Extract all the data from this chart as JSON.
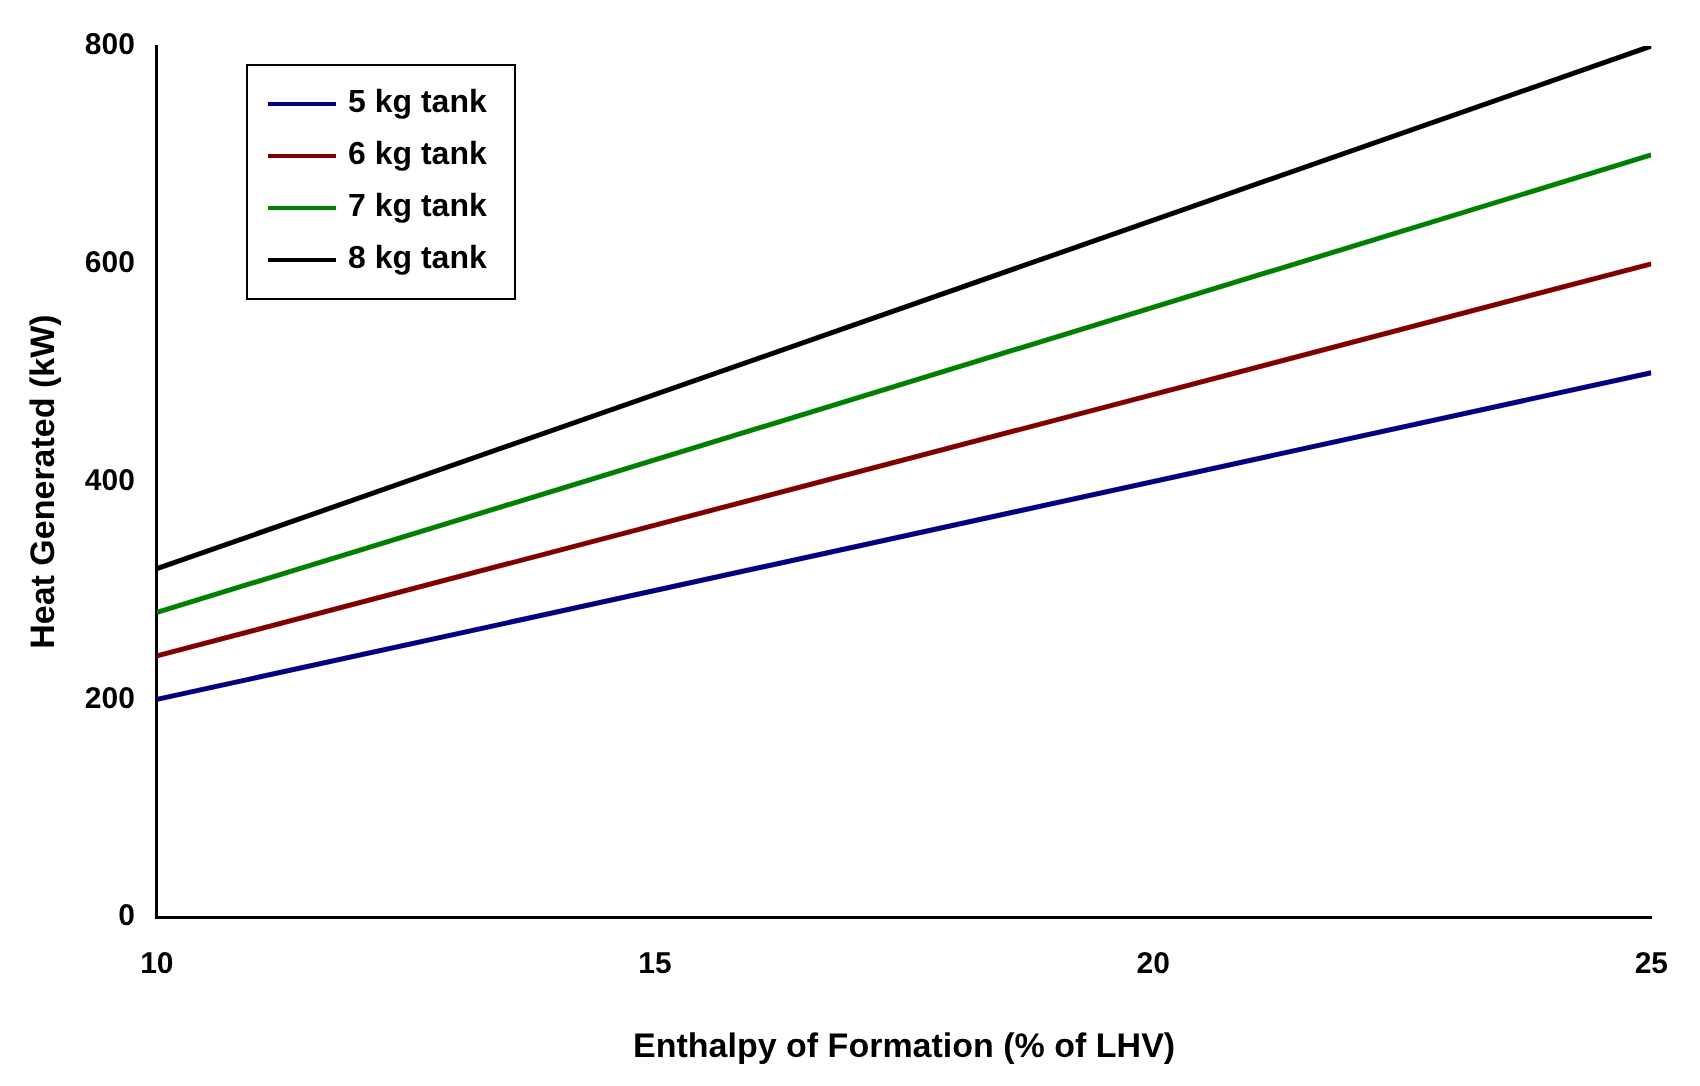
{
  "chart_data": {
    "type": "line",
    "xlabel": "Enthalpy of Formation (% of LHV)",
    "ylabel": "Heat Generated (kW)",
    "x": [
      10,
      25
    ],
    "series": [
      {
        "name": "5 kg tank",
        "color": "#000080",
        "values": [
          200,
          500
        ]
      },
      {
        "name": "6 kg tank",
        "color": "#800000",
        "values": [
          240,
          600
        ]
      },
      {
        "name": "7 kg tank",
        "color": "#008000",
        "values": [
          280,
          700
        ]
      },
      {
        "name": "8 kg tank",
        "color": "#000000",
        "values": [
          320,
          800
        ]
      }
    ],
    "xlim": [
      10,
      25
    ],
    "xticks": [
      10,
      15,
      20,
      25
    ],
    "ylim": [
      0,
      800
    ],
    "yticks": [
      0,
      200,
      400,
      600,
      800
    ],
    "grid": false,
    "legend": "top left",
    "marker": "none",
    "line_style": "solid"
  }
}
